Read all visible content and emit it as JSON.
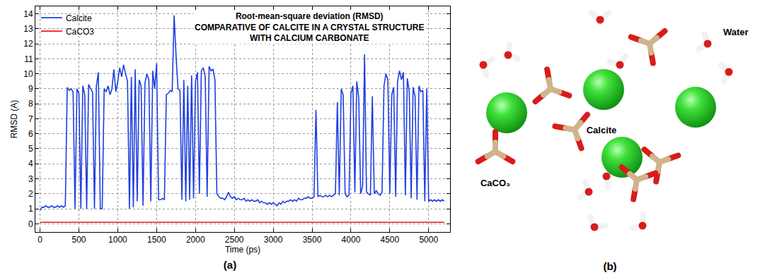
{
  "panels": [
    "(a)",
    "(b)"
  ],
  "chart_data": {
    "type": "line",
    "title": "Root-mean-square deviation (RMSD)",
    "subtitle": "COMPARATIVE OF CALCITE IN A CRYSTAL STRUCTURE WITH CALCIUM CARBONATE",
    "x_label": "Time (ps)",
    "y_label": "RMSD (A)",
    "x": [
      0,
      25,
      50,
      75,
      100,
      125,
      150,
      175,
      200,
      225,
      250,
      275,
      300,
      325,
      350,
      375,
      400,
      425,
      450,
      475,
      500,
      525,
      550,
      575,
      600,
      625,
      650,
      675,
      700,
      725,
      750,
      775,
      800,
      825,
      850,
      875,
      900,
      925,
      950,
      975,
      1000,
      1025,
      1050,
      1075,
      1100,
      1125,
      1150,
      1175,
      1200,
      1225,
      1250,
      1275,
      1300,
      1325,
      1350,
      1375,
      1400,
      1425,
      1450,
      1475,
      1500,
      1525,
      1550,
      1575,
      1600,
      1625,
      1650,
      1675,
      1700,
      1725,
      1750,
      1775,
      1800,
      1825,
      1850,
      1875,
      1900,
      1925,
      1950,
      1975,
      2000,
      2025,
      2050,
      2075,
      2100,
      2125,
      2150,
      2175,
      2200,
      2225,
      2250,
      2275,
      2300,
      2325,
      2350,
      2375,
      2400,
      2425,
      2450,
      2475,
      2500,
      2525,
      2550,
      2575,
      2600,
      2625,
      2650,
      2675,
      2700,
      2725,
      2750,
      2775,
      2800,
      2825,
      2850,
      2875,
      2900,
      2925,
      2950,
      2975,
      3000,
      3025,
      3050,
      3075,
      3100,
      3125,
      3150,
      3175,
      3200,
      3225,
      3250,
      3275,
      3300,
      3325,
      3350,
      3375,
      3400,
      3425,
      3450,
      3475,
      3500,
      3525,
      3550,
      3575,
      3600,
      3625,
      3650,
      3675,
      3700,
      3725,
      3750,
      3775,
      3800,
      3825,
      3850,
      3875,
      3900,
      3925,
      3950,
      3975,
      4000,
      4025,
      4050,
      4075,
      4100,
      4125,
      4150,
      4175,
      4200,
      4225,
      4250,
      4275,
      4300,
      4325,
      4350,
      4375,
      4400,
      4425,
      4450,
      4475,
      4500,
      4525,
      4550,
      4575,
      4600,
      4625,
      4650,
      4675,
      4700,
      4725,
      4750,
      4775,
      4800,
      4825,
      4850,
      4875,
      4900,
      4925,
      4950,
      4975,
      5000,
      5025,
      5050,
      5075,
      5100,
      5125,
      5150,
      5175,
      5200
    ],
    "series": [
      {
        "name": "Calcite",
        "color": "#1f3fe0",
        "values": [
          0.9,
          1.1,
          1.1,
          1.2,
          1.1,
          1.1,
          1.2,
          1.1,
          1.1,
          1.2,
          1.1,
          1.2,
          1.1,
          1.2,
          9.1,
          8.9,
          9.0,
          8.8,
          1.0,
          9.0,
          8.7,
          1.0,
          9.2,
          8.6,
          1.0,
          9.3,
          9.0,
          8.8,
          1.0,
          9.2,
          10.1,
          1.0,
          1.0,
          9.0,
          8.8,
          9.2,
          8.6,
          9.0,
          10.3,
          8.8,
          9.5,
          10.4,
          9.8,
          10.6,
          10.0,
          9.5,
          1.0,
          9.8,
          1.1,
          10.3,
          1.5,
          9.6,
          9.2,
          1.2,
          9.4,
          10.0,
          9.6,
          1.5,
          10.2,
          9.0,
          10.7,
          1.6,
          1.6,
          1.7,
          1.6,
          8.6,
          8.7,
          8.9,
          8.8,
          13.9,
          11.2,
          9.0,
          8.9,
          1.6,
          9.6,
          1.5,
          9.2,
          1.6,
          9.9,
          1.7,
          9.5,
          10.1,
          2.0,
          10.2,
          10.4,
          9.8,
          1.8,
          10.5,
          10.2,
          10.3,
          9.6,
          2.0,
          1.8,
          1.7,
          1.7,
          1.6,
          1.8,
          2.1,
          1.8,
          1.7,
          1.8,
          1.6,
          1.7,
          1.6,
          1.6,
          1.7,
          1.5,
          1.6,
          1.5,
          1.6,
          1.5,
          1.5,
          1.6,
          1.4,
          1.5,
          1.4,
          1.4,
          1.3,
          1.4,
          1.3,
          1.4,
          1.3,
          1.2,
          1.4,
          1.3,
          1.5,
          1.4,
          1.5,
          1.5,
          1.6,
          1.5,
          1.6,
          1.5,
          1.7,
          1.6,
          1.6,
          1.7,
          1.7,
          1.8,
          1.7,
          1.7,
          1.8,
          7.6,
          1.8,
          1.9,
          1.8,
          1.8,
          1.9,
          1.8,
          1.9,
          1.8,
          1.9,
          2.0,
          8.1,
          1.9,
          9.0,
          8.6,
          2.0,
          1.8,
          1.9,
          8.7,
          9.2,
          2.1,
          9.5,
          8.4,
          2.0,
          2.5,
          11.3,
          2.1,
          2.0,
          1.9,
          8.5,
          2.0,
          2.2,
          2.0,
          1.9,
          2.1,
          9.2,
          10.0,
          9.6,
          2.0,
          8.6,
          9.1,
          1.8,
          9.5,
          10.2,
          9.6,
          10.1,
          1.9,
          9.7,
          8.8,
          1.7,
          9.1,
          8.5,
          1.6,
          9.2,
          8.8,
          8.9,
          1.5,
          9.0,
          1.5,
          1.6,
          1.5,
          1.6,
          1.5,
          1.6,
          1.5,
          1.6,
          1.5
        ]
      },
      {
        "name": "CaCO3",
        "color": "#e8191c",
        "x": [
          0,
          1000,
          2000,
          3000,
          4000,
          5000,
          5200
        ],
        "values": [
          0.1,
          0.1,
          0.1,
          0.1,
          0.1,
          0.1,
          0.1
        ]
      }
    ],
    "xlim": [
      -60,
      5275
    ],
    "xticks": [
      0,
      500,
      1000,
      1500,
      2000,
      2500,
      3000,
      3500,
      4000,
      4500,
      5000
    ],
    "ylim": [
      -0.55,
      14.5
    ],
    "yticks": [
      0,
      1,
      2,
      3,
      4,
      5,
      6,
      7,
      8,
      9,
      10,
      11,
      12,
      13,
      14
    ],
    "grid": true,
    "legend": "upper left"
  },
  "diagram": {
    "water_label": "Water",
    "calcite_label": "Calcite",
    "carbonate_label": "CaCO₃"
  }
}
